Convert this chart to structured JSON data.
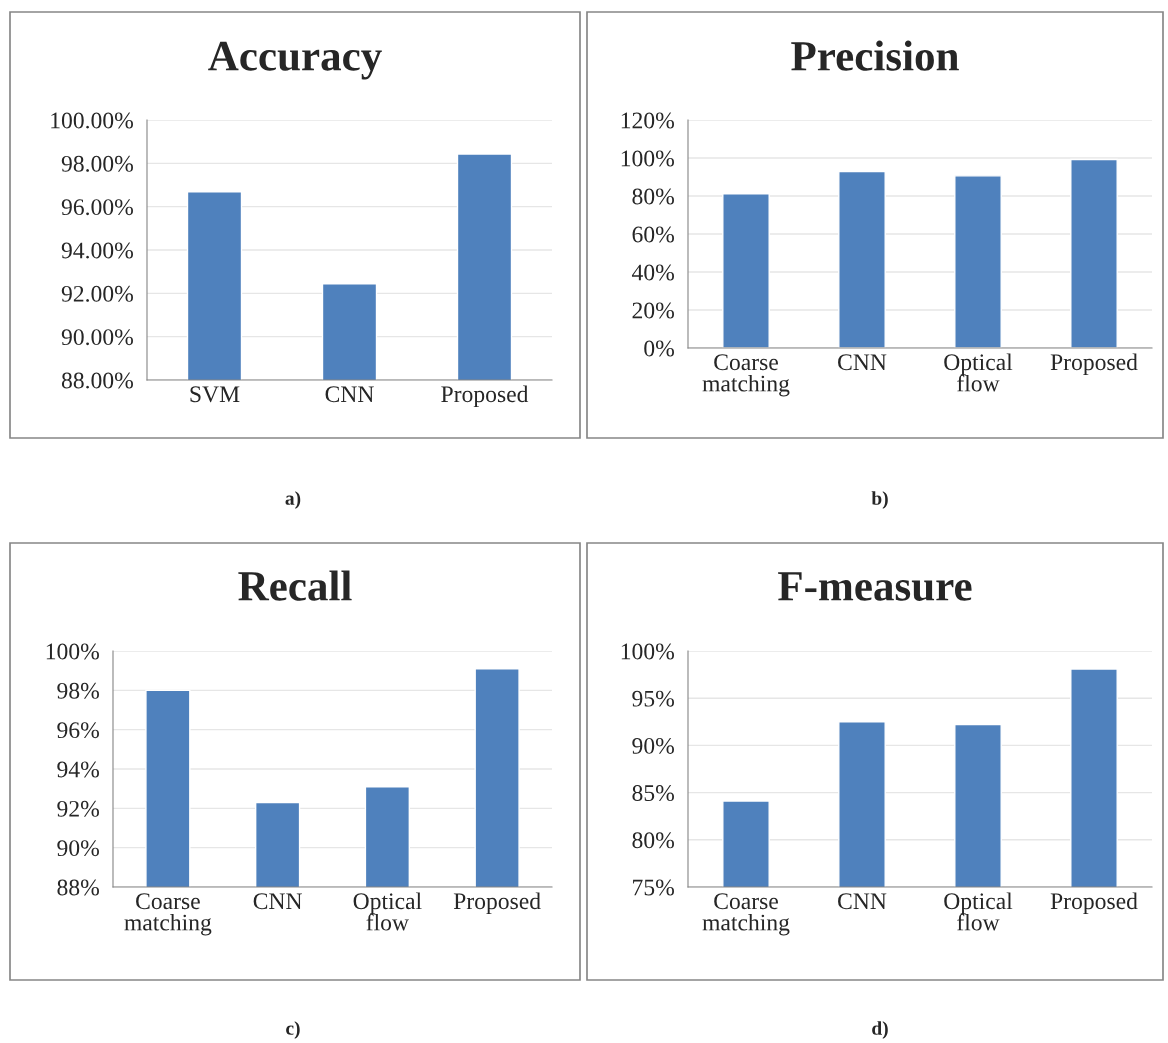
{
  "chart_data": [
    {
      "type": "bar",
      "title": "Accuracy",
      "categories": [
        "SVM",
        "CNN",
        "Proposed"
      ],
      "values": [
        96.69,
        92.44,
        98.43
      ],
      "color": "#4f81bd",
      "ylim": [
        88,
        100
      ],
      "yticks": [
        {
          "value": 88,
          "label": "88.00%"
        },
        {
          "value": 90,
          "label": "90.00%"
        },
        {
          "value": 92,
          "label": "92.00%"
        },
        {
          "value": 94,
          "label": "94.00%"
        },
        {
          "value": 96,
          "label": "96.00%"
        },
        {
          "value": 98,
          "label": "98.00%"
        },
        {
          "value": 100,
          "label": "100.00%"
        }
      ],
      "grid": "y",
      "annotations": [
        "a)"
      ]
    },
    {
      "type": "bar",
      "title": "Precision",
      "categories": [
        "Coarse\nmatching",
        "CNN",
        "Optical\nflow",
        "Proposed"
      ],
      "values": [
        81.2,
        92.8,
        90.6,
        99.2
      ],
      "color": "#4f81bd",
      "ylim": [
        0,
        120
      ],
      "yticks": [
        {
          "value": 0,
          "label": "0%"
        },
        {
          "value": 20,
          "label": "20%"
        },
        {
          "value": 40,
          "label": "40%"
        },
        {
          "value": 60,
          "label": "60%"
        },
        {
          "value": 80,
          "label": "80%"
        },
        {
          "value": 100,
          "label": "100%"
        },
        {
          "value": 120,
          "label": "120%"
        }
      ],
      "grid": "y",
      "annotations": [
        "b)"
      ]
    },
    {
      "type": "bar",
      "title": "Recall",
      "categories": [
        "Coarse\nmatching",
        "CNN",
        "Optical\nflow",
        "Proposed"
      ],
      "values": [
        98.0,
        92.3,
        93.1,
        99.1
      ],
      "color": "#4f81bd",
      "ylim": [
        88,
        100
      ],
      "yticks": [
        {
          "value": 88,
          "label": "88%"
        },
        {
          "value": 90,
          "label": "90%"
        },
        {
          "value": 92,
          "label": "92%"
        },
        {
          "value": 94,
          "label": "94%"
        },
        {
          "value": 96,
          "label": "96%"
        },
        {
          "value": 98,
          "label": "98%"
        },
        {
          "value": 100,
          "label": "100%"
        }
      ],
      "grid": "y",
      "annotations": [
        "c)"
      ]
    },
    {
      "type": "bar",
      "title": "F-measure",
      "categories": [
        "Coarse\nmatching",
        "CNN",
        "Optical\nflow",
        "Proposed"
      ],
      "values": [
        84.1,
        92.5,
        92.2,
        98.1
      ],
      "color": "#4f81bd",
      "ylim": [
        75,
        100
      ],
      "yticks": [
        {
          "value": 75,
          "label": "75%"
        },
        {
          "value": 80,
          "label": "80%"
        },
        {
          "value": 85,
          "label": "85%"
        },
        {
          "value": 90,
          "label": "90%"
        },
        {
          "value": 95,
          "label": "95%"
        },
        {
          "value": 100,
          "label": "100%"
        }
      ],
      "grid": "y",
      "annotations": [
        "d)"
      ]
    }
  ]
}
